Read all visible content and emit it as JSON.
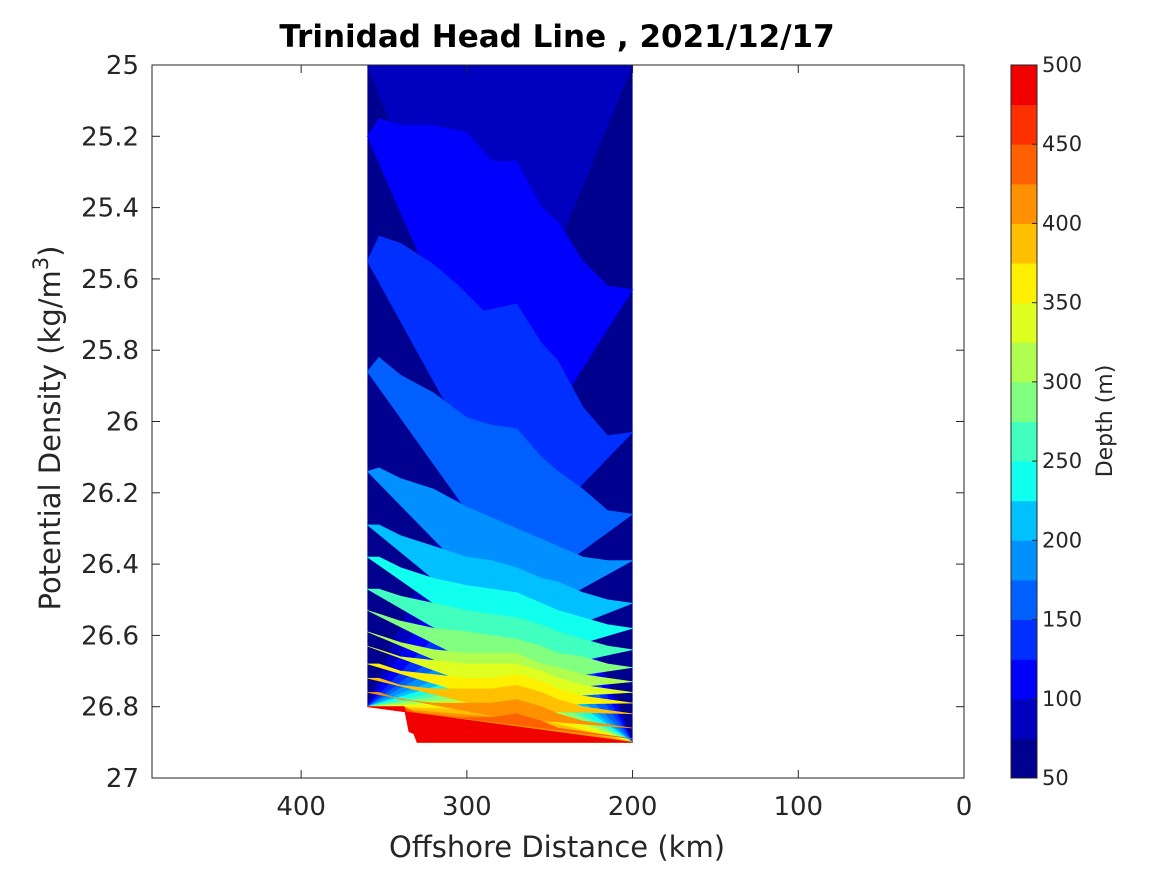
{
  "chart_data": {
    "type": "contourf",
    "title": "Trinidad Head Line , 2021/12/17",
    "xlabel": "Offshore Distance (km)",
    "ylabel": "Potential Density (kg/m",
    "ylabel_superscript": "3",
    "ylabel_close": ")",
    "xlim": [
      490,
      0
    ],
    "ylim": [
      25,
      27
    ],
    "y_reversed": true,
    "x_reversed": true,
    "x_ticks": [
      400,
      300,
      200,
      100,
      0
    ],
    "y_ticks": [
      25,
      25.2,
      25.4,
      25.6,
      25.8,
      26,
      26.2,
      26.4,
      26.6,
      26.8,
      27
    ],
    "y_tick_labels": [
      "25",
      "25.2",
      "25.4",
      "25.6",
      "25.8",
      "26",
      "26.2",
      "26.4",
      "26.6",
      "26.8",
      "27"
    ],
    "data_extent": {
      "x": [
        360,
        200
      ],
      "y": [
        25,
        26.9
      ]
    },
    "colorbar": {
      "label": "Depth (m)",
      "range": [
        50,
        500
      ],
      "ticks": [
        50,
        100,
        150,
        200,
        250,
        300,
        350,
        400,
        450,
        500
      ],
      "levels": [
        50,
        75,
        100,
        125,
        150,
        175,
        200,
        225,
        250,
        275,
        300,
        325,
        350,
        375,
        400,
        425,
        450,
        475,
        500
      ],
      "colors": [
        "#00008F",
        "#0000BF",
        "#0000FF",
        "#0030FF",
        "#0060FF",
        "#0090FF",
        "#00C0FF",
        "#10FFEF",
        "#40FFBF",
        "#80FF80",
        "#B0FF50",
        "#DFFF20",
        "#FFF000",
        "#FFC000",
        "#FF9000",
        "#FF6000",
        "#FF3000",
        "#F00000",
        "#BF0000",
        "#9F0000"
      ]
    },
    "depth_contours": [
      {
        "depth": 75,
        "points": [
          [
            360,
            25
          ],
          [
            333,
            25
          ],
          [
            320,
            25
          ],
          [
            310,
            25
          ],
          [
            290,
            25
          ],
          [
            270,
            25
          ],
          [
            250,
            25
          ],
          [
            240,
            25
          ],
          [
            230,
            25
          ],
          [
            200,
            25
          ]
        ]
      },
      {
        "depth": 100,
        "points": [
          [
            360,
            25.2
          ],
          [
            353,
            25.15
          ],
          [
            340,
            25.17
          ],
          [
            320,
            25.17
          ],
          [
            300,
            25.19
          ],
          [
            285,
            25.27
          ],
          [
            270,
            25.27
          ],
          [
            255,
            25.4
          ],
          [
            245,
            25.44
          ],
          [
            230,
            25.55
          ],
          [
            215,
            25.62
          ],
          [
            200,
            25.63
          ]
        ]
      },
      {
        "depth": 125,
        "points": [
          [
            360,
            25.55
          ],
          [
            353,
            25.48
          ],
          [
            340,
            25.5
          ],
          [
            320,
            25.56
          ],
          [
            305,
            25.62
          ],
          [
            290,
            25.69
          ],
          [
            270,
            25.67
          ],
          [
            255,
            25.78
          ],
          [
            245,
            25.83
          ],
          [
            230,
            25.96
          ],
          [
            215,
            26.04
          ],
          [
            200,
            26.03
          ]
        ]
      },
      {
        "depth": 150,
        "points": [
          [
            360,
            25.86
          ],
          [
            353,
            25.82
          ],
          [
            340,
            25.87
          ],
          [
            320,
            25.92
          ],
          [
            300,
            25.99
          ],
          [
            285,
            26.01
          ],
          [
            270,
            26.02
          ],
          [
            255,
            26.1
          ],
          [
            245,
            26.14
          ],
          [
            230,
            26.19
          ],
          [
            215,
            26.25
          ],
          [
            200,
            26.26
          ]
        ]
      },
      {
        "depth": 175,
        "points": [
          [
            360,
            26.14
          ],
          [
            353,
            26.13
          ],
          [
            340,
            26.16
          ],
          [
            320,
            26.19
          ],
          [
            300,
            26.24
          ],
          [
            285,
            26.27
          ],
          [
            270,
            26.3
          ],
          [
            255,
            26.33
          ],
          [
            245,
            26.35
          ],
          [
            230,
            26.38
          ],
          [
            215,
            26.39
          ],
          [
            200,
            26.39
          ]
        ]
      },
      {
        "depth": 200,
        "points": [
          [
            360,
            26.29
          ],
          [
            353,
            26.29
          ],
          [
            340,
            26.32
          ],
          [
            320,
            26.35
          ],
          [
            300,
            26.38
          ],
          [
            285,
            26.39
          ],
          [
            270,
            26.41
          ],
          [
            255,
            26.44
          ],
          [
            245,
            26.45
          ],
          [
            230,
            26.48
          ],
          [
            215,
            26.5
          ],
          [
            200,
            26.51
          ]
        ]
      },
      {
        "depth": 225,
        "points": [
          [
            360,
            26.38
          ],
          [
            353,
            26.38
          ],
          [
            340,
            26.41
          ],
          [
            320,
            26.44
          ],
          [
            300,
            26.46
          ],
          [
            285,
            26.47
          ],
          [
            270,
            26.48
          ],
          [
            255,
            26.51
          ],
          [
            245,
            26.53
          ],
          [
            230,
            26.55
          ],
          [
            215,
            26.57
          ],
          [
            200,
            26.58
          ]
        ]
      },
      {
        "depth": 250,
        "points": [
          [
            360,
            26.47
          ],
          [
            353,
            26.47
          ],
          [
            340,
            26.49
          ],
          [
            320,
            26.51
          ],
          [
            300,
            26.53
          ],
          [
            285,
            26.54
          ],
          [
            270,
            26.55
          ],
          [
            255,
            26.57
          ],
          [
            245,
            26.59
          ],
          [
            230,
            26.61
          ],
          [
            215,
            26.63
          ],
          [
            200,
            26.64
          ]
        ]
      },
      {
        "depth": 275,
        "points": [
          [
            360,
            26.53
          ],
          [
            353,
            26.54
          ],
          [
            340,
            26.56
          ],
          [
            320,
            26.58
          ],
          [
            300,
            26.59
          ],
          [
            285,
            26.6
          ],
          [
            270,
            26.61
          ],
          [
            255,
            26.63
          ],
          [
            245,
            26.65
          ],
          [
            230,
            26.66
          ],
          [
            215,
            26.68
          ],
          [
            200,
            26.69
          ]
        ]
      },
      {
        "depth": 300,
        "points": [
          [
            360,
            26.59
          ],
          [
            353,
            26.6
          ],
          [
            340,
            26.62
          ],
          [
            320,
            26.64
          ],
          [
            300,
            26.65
          ],
          [
            285,
            26.65
          ],
          [
            270,
            26.65
          ],
          [
            255,
            26.68
          ],
          [
            245,
            26.69
          ],
          [
            230,
            26.71
          ],
          [
            215,
            26.72
          ],
          [
            200,
            26.73
          ]
        ]
      },
      {
        "depth": 325,
        "points": [
          [
            360,
            26.63
          ],
          [
            353,
            26.64
          ],
          [
            340,
            26.66
          ],
          [
            320,
            26.67
          ],
          [
            300,
            26.68
          ],
          [
            285,
            26.68
          ],
          [
            270,
            26.68
          ],
          [
            255,
            26.7
          ],
          [
            245,
            26.72
          ],
          [
            230,
            26.74
          ],
          [
            215,
            26.75
          ],
          [
            200,
            26.76
          ]
        ]
      },
      {
        "depth": 350,
        "points": [
          [
            360,
            26.68
          ],
          [
            353,
            26.68
          ],
          [
            340,
            26.7
          ],
          [
            320,
            26.71
          ],
          [
            300,
            26.72
          ],
          [
            285,
            26.72
          ],
          [
            270,
            26.71
          ],
          [
            255,
            26.73
          ],
          [
            245,
            26.75
          ],
          [
            230,
            26.77
          ],
          [
            215,
            26.78
          ],
          [
            200,
            26.79
          ]
        ]
      },
      {
        "depth": 375,
        "points": [
          [
            360,
            26.72
          ],
          [
            353,
            26.72
          ],
          [
            340,
            26.74
          ],
          [
            320,
            26.75
          ],
          [
            300,
            26.75
          ],
          [
            285,
            26.75
          ],
          [
            270,
            26.74
          ],
          [
            255,
            26.76
          ],
          [
            245,
            26.78
          ],
          [
            230,
            26.8
          ],
          [
            215,
            26.81
          ],
          [
            200,
            26.82
          ]
        ]
      },
      {
        "depth": 400,
        "points": [
          [
            360,
            26.76
          ],
          [
            353,
            26.76
          ],
          [
            340,
            26.78
          ],
          [
            320,
            26.79
          ],
          [
            300,
            26.79
          ],
          [
            285,
            26.79
          ],
          [
            270,
            26.78
          ],
          [
            255,
            26.8
          ],
          [
            245,
            26.82
          ],
          [
            230,
            26.84
          ],
          [
            215,
            26.85
          ],
          [
            200,
            26.86
          ]
        ]
      },
      {
        "depth": 425,
        "points": [
          [
            360,
            26.8
          ],
          [
            338,
            26.8
          ],
          [
            330,
            26.82
          ],
          [
            320,
            26.83
          ],
          [
            300,
            26.83
          ],
          [
            285,
            26.83
          ],
          [
            270,
            26.82
          ],
          [
            255,
            26.84
          ],
          [
            245,
            26.86
          ],
          [
            230,
            26.87
          ],
          [
            215,
            26.88
          ],
          [
            200,
            26.89
          ]
        ]
      },
      {
        "depth": 450,
        "points": [
          [
            360,
            26.8
          ],
          [
            338,
            26.8
          ],
          [
            333,
            26.85
          ],
          [
            320,
            26.86
          ],
          [
            300,
            26.87
          ],
          [
            285,
            26.87
          ],
          [
            270,
            26.86
          ],
          [
            255,
            26.88
          ],
          [
            245,
            26.89
          ],
          [
            230,
            26.9
          ],
          [
            215,
            26.9
          ],
          [
            200,
            26.9
          ]
        ]
      },
      {
        "depth": 475,
        "points": [
          [
            360,
            26.8
          ],
          [
            338,
            26.8
          ],
          [
            335,
            26.87
          ],
          [
            325,
            26.89
          ],
          [
            310,
            26.9
          ],
          [
            290,
            26.9
          ],
          [
            270,
            26.9
          ],
          [
            255,
            26.9
          ],
          [
            245,
            26.9
          ],
          [
            230,
            26.9
          ],
          [
            215,
            26.9
          ],
          [
            200,
            26.9
          ]
        ]
      }
    ],
    "bottom_boundary": [
      [
        200,
        26.9
      ],
      [
        330,
        26.9
      ],
      [
        338,
        26.8
      ],
      [
        360,
        26.8
      ]
    ],
    "grid": false
  }
}
